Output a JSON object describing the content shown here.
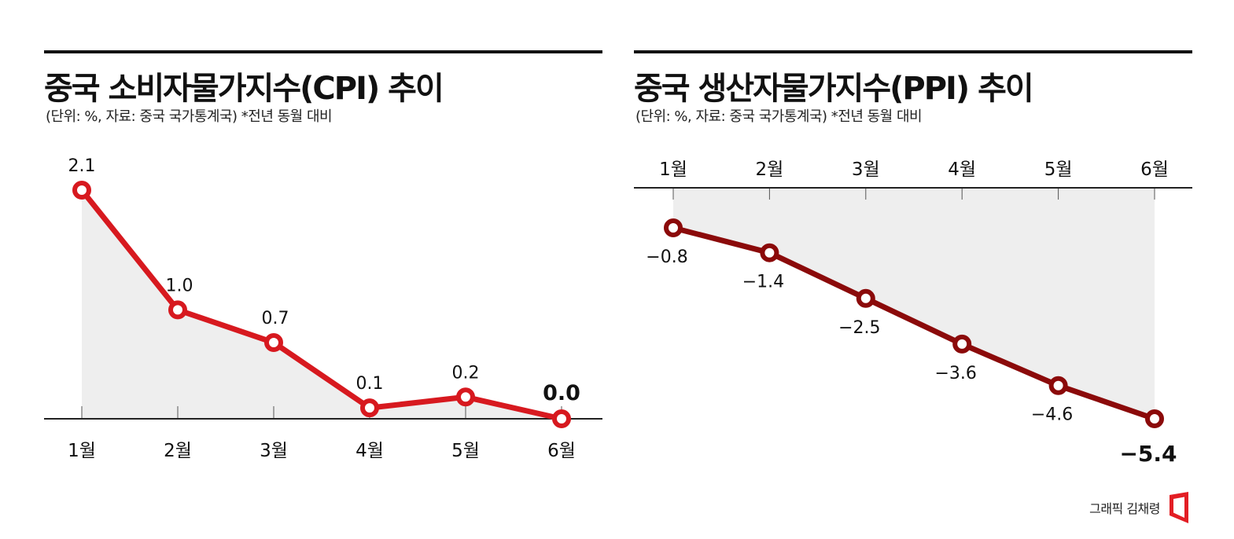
{
  "cpi": {
    "title": "중국 소비자물가지수(CPI) 추이",
    "subtitle": "(단위: %, 자료: 중국 국가통계국)  *전년 동월 대비",
    "line_color": "#d7191f",
    "fill_color": "#eeeeee"
  },
  "ppi": {
    "title": "중국 생산자물가지수(PPI) 추이",
    "subtitle": "(단위: %, 자료: 중국 국가통계국)  *전년 동월 대비",
    "line_color": "#8b0a0a",
    "fill_color": "#eeeeee"
  },
  "credit": {
    "label": "그래픽 김채령",
    "logo_color": "#e31e24"
  },
  "chart_data": [
    {
      "type": "line",
      "title": "중국 소비자물가지수(CPI) 추이",
      "subtitle": "(단위: %, 자료: 중국 국가통계국) *전년 동월 대비",
      "categories": [
        "1월",
        "2월",
        "3월",
        "4월",
        "5월",
        "6월"
      ],
      "values": [
        2.1,
        1.0,
        0.7,
        0.1,
        0.2,
        0.0
      ],
      "labels": [
        "2.1",
        "1.0",
        "0.7",
        "0.1",
        "0.2",
        "0.0"
      ],
      "xlabel": "",
      "ylabel": "%",
      "ylim": [
        0,
        2.1
      ],
      "grid": false,
      "x_axis_position": "bottom"
    },
    {
      "type": "line",
      "title": "중국 생산자물가지수(PPI) 추이",
      "subtitle": "(단위: %, 자료: 중국 국가통계국) *전년 동월 대비",
      "categories": [
        "1월",
        "2월",
        "3월",
        "4월",
        "5월",
        "6월"
      ],
      "values": [
        -0.8,
        -1.4,
        -2.5,
        -3.6,
        -4.6,
        -5.4
      ],
      "labels": [
        "-0.8",
        "-1.4",
        "-2.5",
        "-3.6",
        "-4.6",
        "-5.4"
      ],
      "xlabel": "",
      "ylabel": "%",
      "ylim": [
        -5.4,
        0
      ],
      "grid": false,
      "x_axis_position": "top"
    }
  ]
}
